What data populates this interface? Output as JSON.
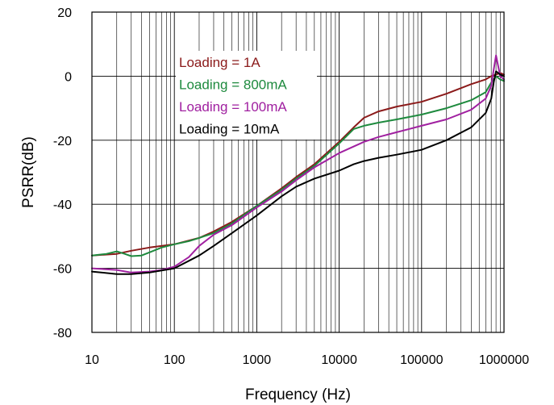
{
  "chart_data": {
    "type": "line",
    "title": "",
    "xlabel": "Frequency (Hz)",
    "ylabel": "PSRR(dB)",
    "x_scale": "log",
    "xlim": [
      10,
      1000000
    ],
    "ylim": [
      -80,
      20
    ],
    "x_ticks": [
      "10",
      "100",
      "1000",
      "10000",
      "100000",
      "1000000"
    ],
    "y_ticks": [
      "20",
      "0",
      "-20",
      "-40",
      "-60",
      "-80"
    ],
    "grid": true,
    "legend_position": "top-left",
    "series": [
      {
        "name": "Loading = 1A",
        "color": "#8B1A1A",
        "x": [
          10,
          20,
          30,
          50,
          100,
          200,
          300,
          500,
          1000,
          2000,
          3000,
          5000,
          10000,
          15000,
          20000,
          30000,
          50000,
          100000,
          200000,
          400000,
          600000,
          700000,
          800000,
          900000,
          1000000
        ],
        "y": [
          -56,
          -55.5,
          -54.5,
          -53.5,
          -52.5,
          -50.5,
          -48.5,
          -45.5,
          -40.5,
          -35,
          -31.5,
          -27.5,
          -20.5,
          -16,
          -13,
          -11,
          -9.5,
          -8,
          -5.5,
          -2.5,
          -1,
          0,
          0.5,
          1,
          0.5
        ]
      },
      {
        "name": "Loading = 800mA",
        "color": "#1E8A3E",
        "x": [
          10,
          15,
          20,
          25,
          30,
          40,
          50,
          70,
          100,
          150,
          200,
          300,
          500,
          1000,
          2000,
          3000,
          5000,
          10000,
          15000,
          20000,
          30000,
          50000,
          100000,
          200000,
          400000,
          600000,
          700000,
          800000,
          900000,
          1000000
        ],
        "y": [
          -56,
          -55.5,
          -54.7,
          -55.5,
          -56.2,
          -56,
          -55,
          -53.5,
          -52.5,
          -51.5,
          -50.5,
          -49,
          -46,
          -40.5,
          -35.5,
          -32,
          -28,
          -21,
          -16.5,
          -15.5,
          -14.5,
          -13.5,
          -12,
          -10,
          -7.5,
          -5,
          -2,
          0,
          -1,
          -1.5
        ]
      },
      {
        "name": "Loading = 100mA",
        "color": "#A020A0",
        "x": [
          10,
          20,
          30,
          50,
          70,
          100,
          150,
          200,
          300,
          500,
          1000,
          2000,
          3000,
          5000,
          10000,
          20000,
          30000,
          50000,
          100000,
          200000,
          400000,
          600000,
          700000,
          750000,
          800000,
          900000,
          1000000
        ],
        "y": [
          -60,
          -60.5,
          -61.3,
          -61,
          -60.5,
          -59.5,
          -56.5,
          -53,
          -49.5,
          -46.5,
          -41,
          -36,
          -32.5,
          -28.5,
          -24,
          -20.5,
          -19,
          -17.5,
          -15.5,
          -13.5,
          -10.5,
          -7,
          -3,
          2,
          6.5,
          0,
          -1
        ]
      },
      {
        "name": "Loading = 10mA",
        "color": "#000000",
        "x": [
          10,
          20,
          30,
          50,
          100,
          200,
          300,
          500,
          1000,
          2000,
          3000,
          5000,
          10000,
          15000,
          20000,
          30000,
          50000,
          100000,
          200000,
          400000,
          600000,
          700000,
          750000,
          800000,
          900000,
          1000000
        ],
        "y": [
          -61,
          -61.8,
          -61.8,
          -61.3,
          -60,
          -56,
          -53,
          -49,
          -43.5,
          -37.5,
          -34.5,
          -32,
          -29.5,
          -27.5,
          -26.5,
          -25.5,
          -24.5,
          -23,
          -20,
          -16,
          -11.5,
          -7,
          -2,
          1.5,
          0.5,
          0
        ]
      }
    ]
  }
}
